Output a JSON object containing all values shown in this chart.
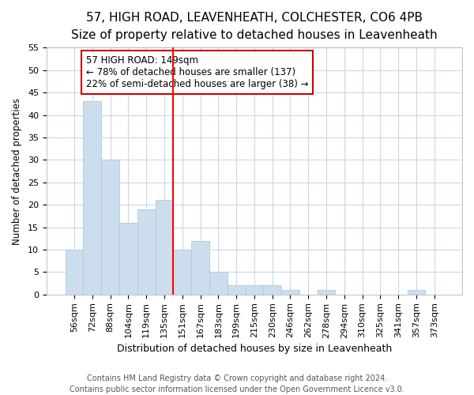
{
  "title": "57, HIGH ROAD, LEAVENHEATH, COLCHESTER, CO6 4PB",
  "subtitle": "Size of property relative to detached houses in Leavenheath",
  "xlabel": "Distribution of detached houses by size in Leavenheath",
  "ylabel": "Number of detached properties",
  "footnote1": "Contains HM Land Registry data © Crown copyright and database right 2024.",
  "footnote2": "Contains public sector information licensed under the Open Government Licence v3.0.",
  "annotation_line1": "57 HIGH ROAD: 149sqm",
  "annotation_line2": "← 78% of detached houses are smaller (137)",
  "annotation_line3": "22% of semi-detached houses are larger (38) →",
  "categories": [
    "56sqm",
    "72sqm",
    "88sqm",
    "104sqm",
    "119sqm",
    "135sqm",
    "151sqm",
    "167sqm",
    "183sqm",
    "199sqm",
    "215sqm",
    "230sqm",
    "246sqm",
    "262sqm",
    "278sqm",
    "294sqm",
    "310sqm",
    "325sqm",
    "341sqm",
    "357sqm",
    "373sqm"
  ],
  "values": [
    10,
    43,
    30,
    16,
    19,
    21,
    10,
    12,
    5,
    2,
    2,
    2,
    1,
    0,
    1,
    0,
    0,
    0,
    0,
    1,
    0
  ],
  "bar_color": "#ccdded",
  "bar_edge_color": "#aaccdd",
  "vline_color": "#ff0000",
  "vline_x_index": 6,
  "annotation_box_facecolor": "#ffffff",
  "annotation_box_edgecolor": "#cc0000",
  "grid_color": "#c8d8e8",
  "background_color": "#ffffff",
  "plot_bg_color": "#ffffff",
  "ylim": [
    0,
    55
  ],
  "yticks": [
    0,
    5,
    10,
    15,
    20,
    25,
    30,
    35,
    40,
    45,
    50,
    55
  ],
  "title_fontsize": 11,
  "subtitle_fontsize": 9,
  "ylabel_fontsize": 8.5,
  "xlabel_fontsize": 9,
  "tick_fontsize": 8,
  "footnote_fontsize": 7,
  "annotation_fontsize": 8.5
}
